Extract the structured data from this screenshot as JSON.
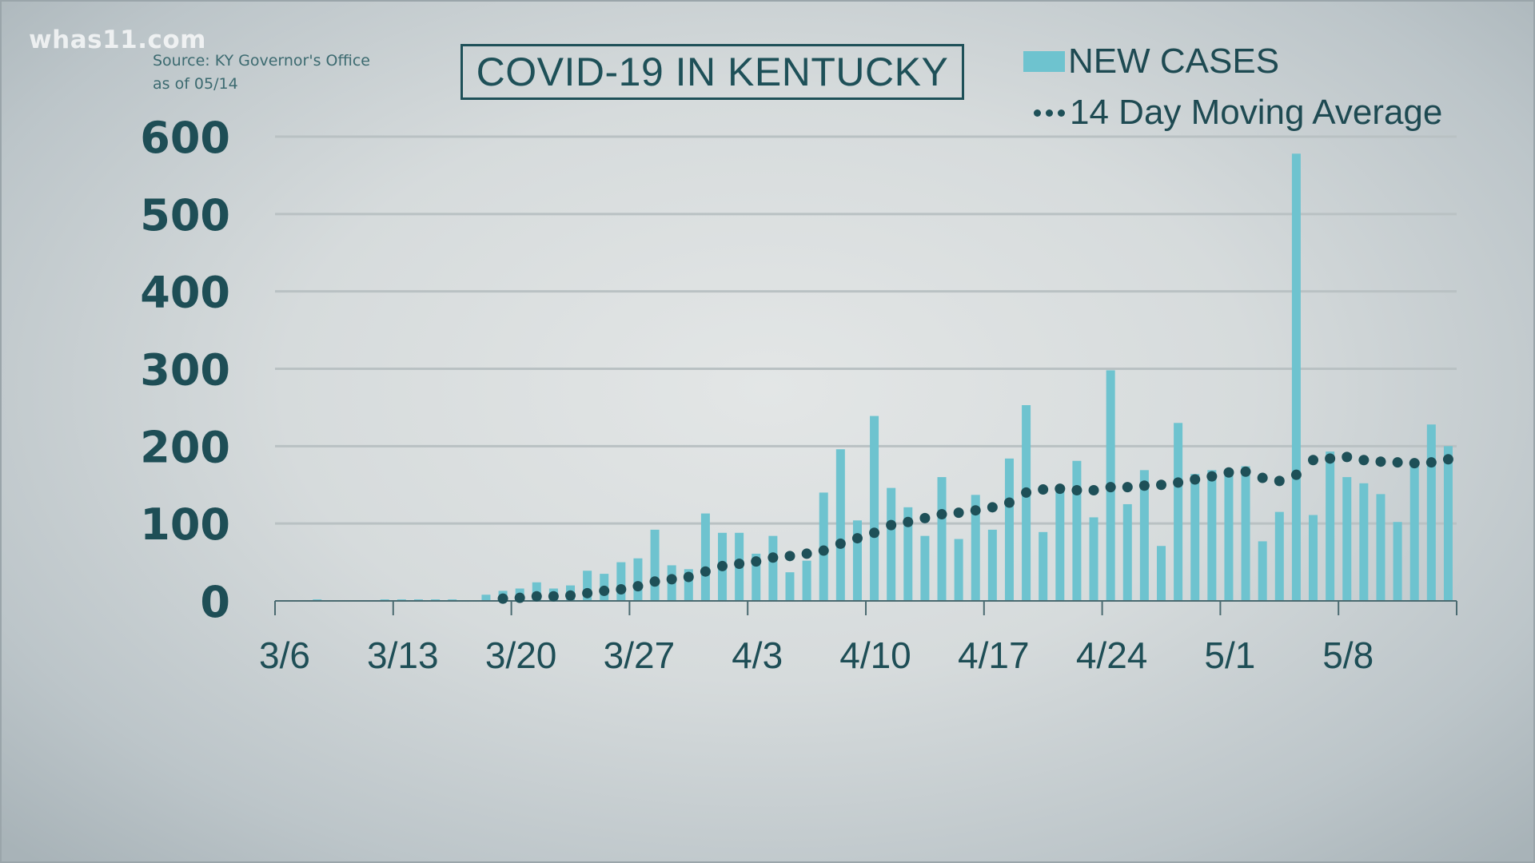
{
  "branding": {
    "logo": "whas11.com",
    "source_line1": "Source: KY Governor's Office",
    "source_line2": "as of 05/14"
  },
  "colors": {
    "bar": "#6ec3cf",
    "dot": "#1e5058",
    "text": "#1e4e56",
    "grid": "#b9c1c3"
  },
  "chart_data": {
    "type": "bar",
    "title": "COVID-19 IN KENTUCKY",
    "xlabel": "",
    "ylabel": "",
    "ylim": [
      0,
      600
    ],
    "yticks": [
      "0",
      "100",
      "200",
      "300",
      "400",
      "500",
      "600"
    ],
    "xtick_labels": [
      "3/6",
      "3/13",
      "3/20",
      "3/27",
      "4/3",
      "4/10",
      "4/17",
      "4/24",
      "5/1",
      "5/8"
    ],
    "grid": true,
    "legend_position": "top-right",
    "legend": [
      "NEW CASES",
      "14 Day Moving Average"
    ],
    "categories": [
      "3/6",
      "3/7",
      "3/8",
      "3/9",
      "3/10",
      "3/11",
      "3/12",
      "3/13",
      "3/14",
      "3/15",
      "3/16",
      "3/17",
      "3/18",
      "3/19",
      "3/20",
      "3/21",
      "3/22",
      "3/23",
      "3/24",
      "3/25",
      "3/26",
      "3/27",
      "3/28",
      "3/29",
      "3/30",
      "3/31",
      "4/1",
      "4/2",
      "4/3",
      "4/4",
      "4/5",
      "4/6",
      "4/7",
      "4/8",
      "4/9",
      "4/10",
      "4/11",
      "4/12",
      "4/13",
      "4/14",
      "4/15",
      "4/16",
      "4/17",
      "4/18",
      "4/19",
      "4/20",
      "4/21",
      "4/22",
      "4/23",
      "4/24",
      "4/25",
      "4/26",
      "4/27",
      "4/28",
      "4/29",
      "4/30",
      "5/1",
      "5/2",
      "5/3",
      "5/4",
      "5/5",
      "5/6",
      "5/7",
      "5/8",
      "5/9",
      "5/10",
      "5/11",
      "5/12",
      "5/13",
      "5/14"
    ],
    "series": [
      {
        "name": "NEW CASES",
        "type": "bar",
        "values": [
          1,
          0,
          2,
          1,
          1,
          0,
          2,
          2,
          2,
          2,
          2,
          1,
          8,
          13,
          16,
          24,
          16,
          20,
          39,
          35,
          50,
          55,
          92,
          46,
          41,
          113,
          88,
          88,
          61,
          84,
          37,
          52,
          140,
          196,
          104,
          239,
          146,
          121,
          84,
          160,
          80,
          137,
          92,
          184,
          253,
          89,
          142,
          181,
          108,
          298,
          125,
          169,
          71,
          230,
          164,
          169,
          170,
          174,
          77,
          115,
          578,
          111,
          193,
          160,
          152,
          138,
          102,
          176,
          228,
          200
        ]
      },
      {
        "name": "14 Day Moving Average",
        "type": "dotted-line",
        "values": [
          null,
          null,
          null,
          null,
          null,
          null,
          null,
          null,
          null,
          null,
          null,
          null,
          null,
          3,
          4,
          6,
          6,
          7,
          10,
          13,
          15,
          19,
          25,
          28,
          31,
          38,
          45,
          48,
          51,
          56,
          58,
          61,
          65,
          74,
          81,
          88,
          98,
          102,
          107,
          112,
          114,
          117,
          121,
          127,
          140,
          144,
          145,
          143,
          143,
          147,
          147,
          149,
          150,
          153,
          157,
          161,
          166,
          167,
          159,
          155,
          163,
          182,
          184,
          186,
          182,
          180,
          179,
          178,
          179,
          183
        ]
      }
    ]
  }
}
